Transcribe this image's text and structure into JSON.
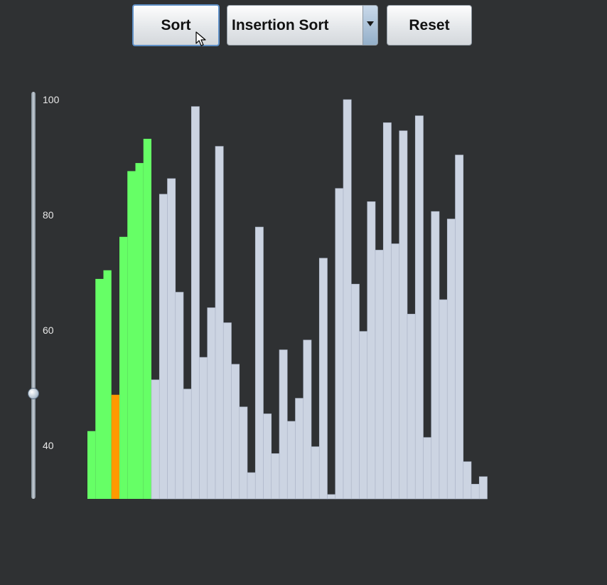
{
  "toolbar": {
    "sort_label": "Sort",
    "algorithm": {
      "selected": "Insertion Sort",
      "options": [
        "Insertion Sort"
      ]
    },
    "reset_label": "Reset"
  },
  "slider": {
    "ticks": [
      "100",
      "80",
      "60",
      "40"
    ],
    "value": 49,
    "min": 30,
    "max": 100
  },
  "colors": {
    "background": "#2f3133",
    "sorted": "#66ff66",
    "current": "#ff9900",
    "unsorted": "#ccd4e2"
  },
  "icons": {
    "cursor": "mouse-pointer-icon",
    "dropdown": "dropdown-arrow-icon"
  },
  "chart_data": {
    "type": "bar",
    "ylim": [
      30,
      100
    ],
    "values": [
      42.5,
      68.9,
      70.4,
      48.8,
      76.2,
      87.6,
      89.0,
      93.2,
      51.4,
      83.6,
      86.3,
      66.6,
      49.8,
      98.8,
      55.3,
      63.9,
      91.9,
      61.3,
      54.1,
      46.7,
      35.3,
      77.9,
      45.5,
      38.6,
      56.6,
      44.2,
      48.2,
      58.3,
      39.8,
      72.5,
      31.5,
      84.6,
      100.0,
      68.0,
      59.8,
      82.3,
      73.9,
      96.0,
      75.0,
      94.6,
      62.8,
      97.2,
      41.4,
      80.6,
      65.3,
      79.3,
      90.4,
      37.2,
      33.3,
      34.6
    ],
    "states": [
      "sorted",
      "sorted",
      "sorted",
      "current",
      "sorted",
      "sorted",
      "sorted",
      "sorted",
      "unsorted",
      "unsorted",
      "unsorted",
      "unsorted",
      "unsorted",
      "unsorted",
      "unsorted",
      "unsorted",
      "unsorted",
      "unsorted",
      "unsorted",
      "unsorted",
      "unsorted",
      "unsorted",
      "unsorted",
      "unsorted",
      "unsorted",
      "unsorted",
      "unsorted",
      "unsorted",
      "unsorted",
      "unsorted",
      "unsorted",
      "unsorted",
      "unsorted",
      "unsorted",
      "unsorted",
      "unsorted",
      "unsorted",
      "unsorted",
      "unsorted",
      "unsorted",
      "unsorted",
      "unsorted",
      "unsorted",
      "unsorted",
      "unsorted",
      "unsorted",
      "unsorted",
      "unsorted",
      "unsorted",
      "unsorted"
    ]
  }
}
